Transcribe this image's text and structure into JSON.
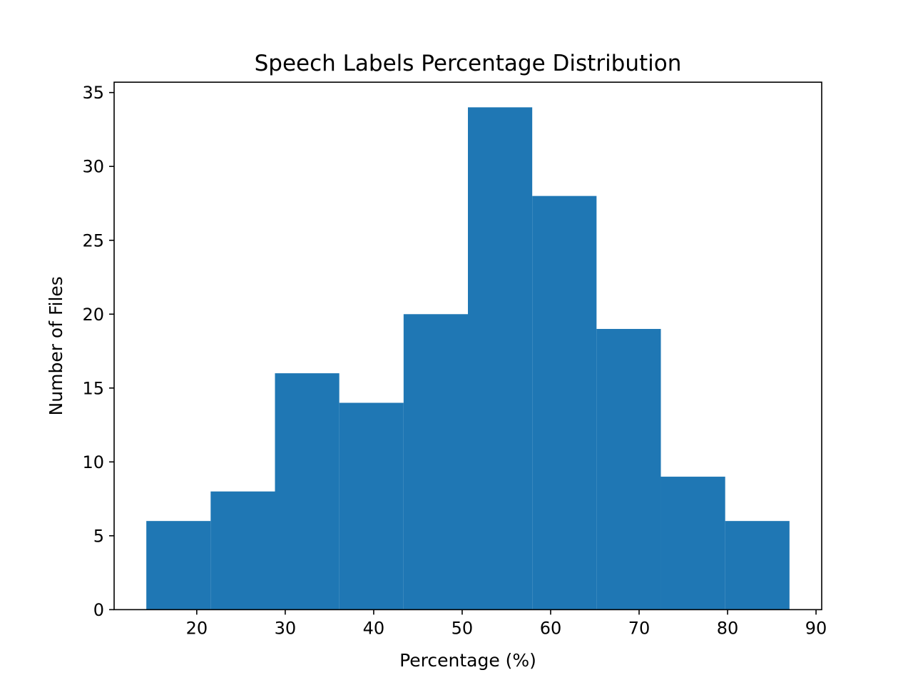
{
  "chart_data": {
    "type": "bar",
    "title": "Speech Labels Percentage Distribution",
    "xlabel": "Percentage (%)",
    "ylabel": "Number of Files",
    "bin_edges": [
      14.3,
      21.57,
      28.84,
      36.11,
      43.38,
      50.65,
      57.92,
      65.19,
      72.46,
      79.73,
      87.0
    ],
    "values": [
      6,
      8,
      16,
      14,
      20,
      34,
      28,
      19,
      9,
      6
    ],
    "xlim": [
      10.66,
      90.64
    ],
    "ylim": [
      0,
      35.7
    ],
    "xticks": [
      20,
      30,
      40,
      50,
      60,
      70,
      80,
      90
    ],
    "yticks": [
      0,
      5,
      10,
      15,
      20,
      25,
      30,
      35
    ],
    "bar_color": "#1f77b4",
    "grid": false,
    "legend": null
  }
}
